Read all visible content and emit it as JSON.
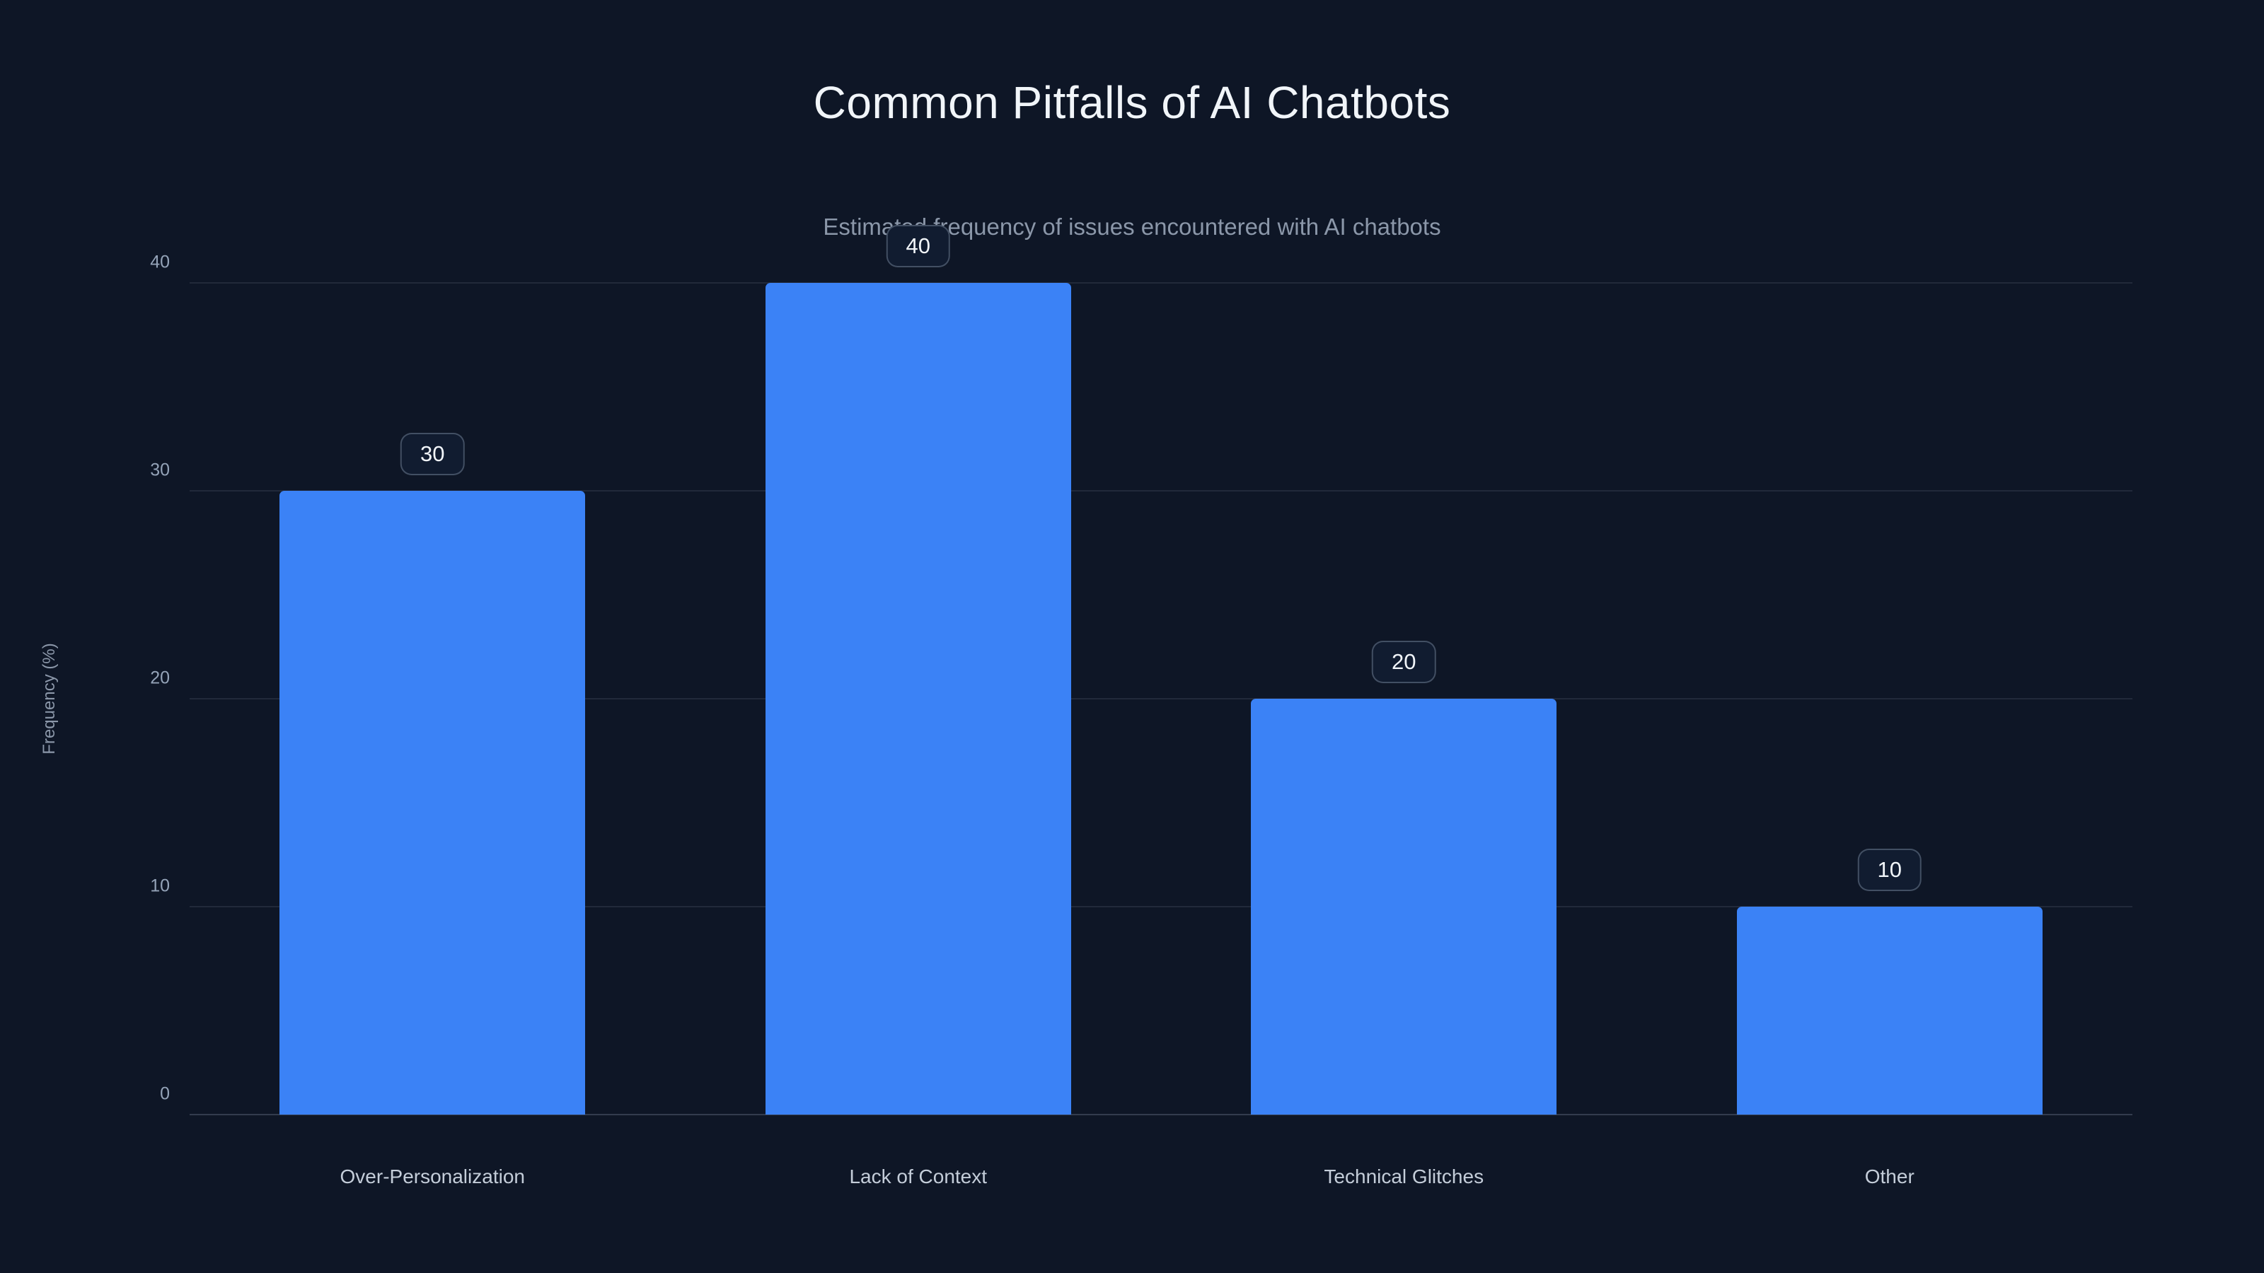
{
  "chart_data": {
    "type": "bar",
    "title": "Common Pitfalls of AI Chatbots",
    "subtitle": "Estimated frequency of issues encountered with AI chatbots",
    "categories": [
      "Over-Personalization",
      "Lack of Context",
      "Technical Glitches",
      "Other"
    ],
    "values": [
      30,
      40,
      20,
      10
    ],
    "xlabel": "",
    "ylabel": "Frequency (%)",
    "ylim": [
      0,
      40
    ],
    "yticks": [
      0,
      10,
      20,
      30,
      40
    ],
    "grid": true,
    "legend": "none",
    "bar_color": "#3b82f6",
    "background_color": "#0e1626"
  }
}
